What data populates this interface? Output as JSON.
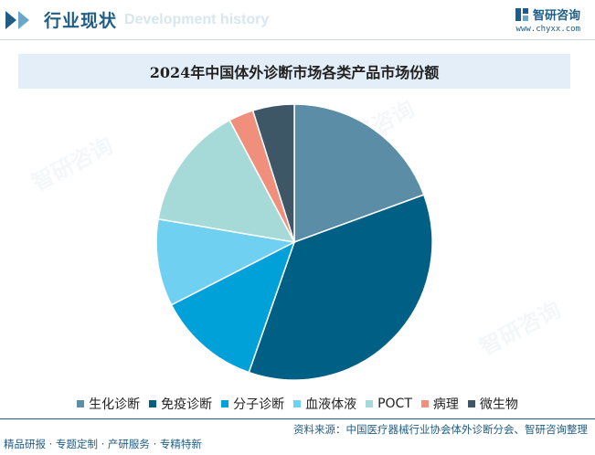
{
  "header": {
    "title": "行业现状",
    "ghost_text": "Development history",
    "brand_name": "智研咨询",
    "brand_url": "www.chyxx.com"
  },
  "watermark": "智研咨询",
  "chart_data": {
    "type": "pie",
    "title": "2024年中国体外诊断市场各类产品市场份额",
    "legend_position": "bottom",
    "slices": [
      {
        "label": "生化诊断",
        "value": 20,
        "color": "#5b8ea6"
      },
      {
        "label": "免疫诊断",
        "value": 37,
        "color": "#005f85"
      },
      {
        "label": "分子诊断",
        "value": 12.5,
        "color": "#00a0d8"
      },
      {
        "label": "血液体液",
        "value": 10.5,
        "color": "#6fd0f2"
      },
      {
        "label": "POCT",
        "value": 15,
        "color": "#a6dad9"
      },
      {
        "label": "病理",
        "value": 3,
        "color": "#ef8f7c"
      },
      {
        "label": "微生物",
        "value": 5,
        "color": "#3e5767"
      }
    ]
  },
  "footer": {
    "source": "资料来源：中国医疗器械行业协会体外诊断分会、智研咨询整理",
    "slogan": "精品研报 · 专题定制 · 产研服务 · 专精特新"
  }
}
